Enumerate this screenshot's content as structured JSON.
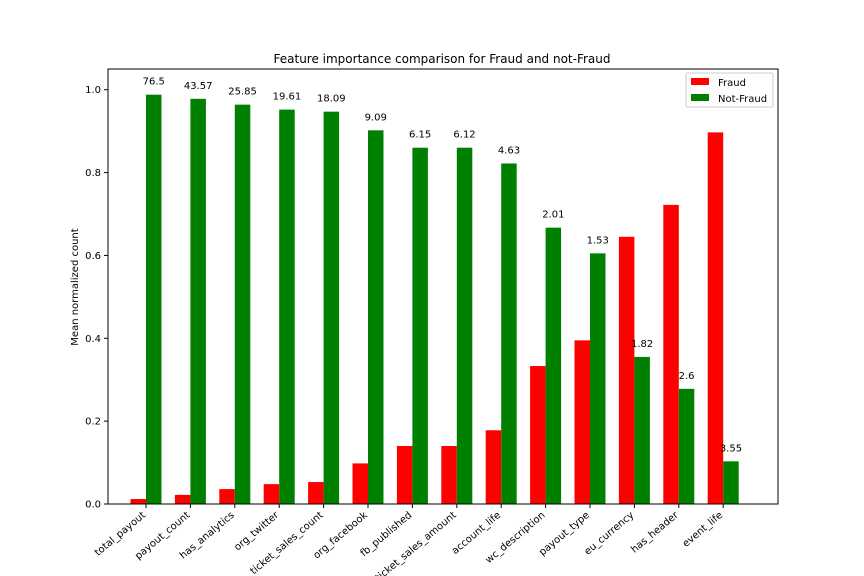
{
  "chart_data": {
    "type": "bar",
    "title": "Feature importance comparison for Fraud and not-Fraud",
    "xlabel": "",
    "ylabel": "Mean normalized count",
    "ylim": [
      0,
      1.05
    ],
    "yticks": [
      "0.0",
      "0.2",
      "0.4",
      "0.6",
      "0.8",
      "1.0"
    ],
    "ytick_values": [
      0,
      0.2,
      0.4,
      0.6,
      0.8,
      1.0
    ],
    "categories": [
      "total_payout",
      "payout_count",
      "has_analytics",
      "org_twitter",
      "ticket_sales_count",
      "org_facebook",
      "fb_published",
      "ticket_sales_amount",
      "account_life",
      "wc_description",
      "payout_type",
      "eu_currency",
      "has_header",
      "event_life"
    ],
    "series": [
      {
        "name": "Fraud",
        "color": "#ff0000",
        "values": [
          0.012,
          0.022,
          0.036,
          0.048,
          0.053,
          0.098,
          0.14,
          0.14,
          0.178,
          0.333,
          0.395,
          0.645,
          0.722,
          0.897
        ]
      },
      {
        "name": "Not-Fraud",
        "color": "#008000",
        "values": [
          0.988,
          0.978,
          0.964,
          0.952,
          0.947,
          0.902,
          0.86,
          0.86,
          0.822,
          0.667,
          0.605,
          0.355,
          0.278,
          0.103
        ]
      }
    ],
    "annotations": [
      "76.5",
      "43.57",
      "25.85",
      "19.61",
      "18.09",
      "9.09",
      "6.15",
      "6.12",
      "4.63",
      "2.01",
      "1.53",
      "1.82",
      "2.6",
      "3.55"
    ],
    "legend_position": "upper right"
  }
}
